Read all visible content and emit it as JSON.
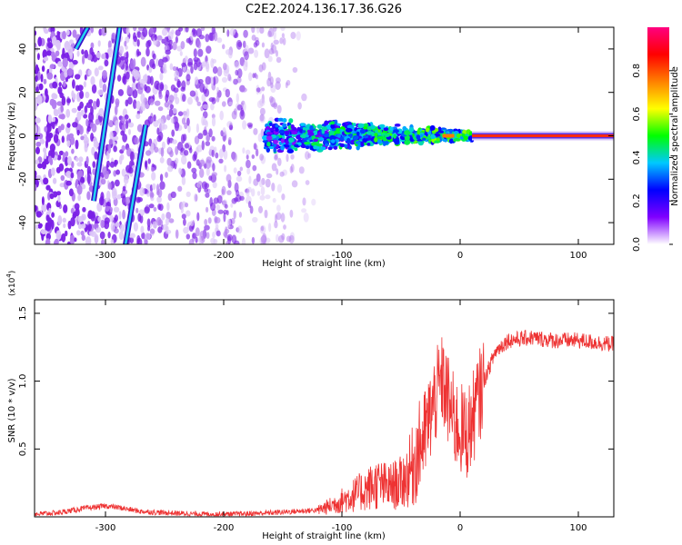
{
  "title": "C2E2.2024.136.17.36.G26",
  "chart_data": [
    {
      "type": "heatmap",
      "title": "C2E2.2024.136.17.36.G26",
      "xlabel": "Height of straight line (km)",
      "ylabel": "Frequency (Hz)",
      "xlim": [
        -360,
        130
      ],
      "ylim": [
        -50,
        50
      ],
      "xticks": [
        -300,
        -200,
        -100,
        0,
        100
      ],
      "yticks": [
        -40,
        -20,
        0,
        20,
        40
      ],
      "colorbar": {
        "label": "Normalized spectral amplitude",
        "range": [
          0,
          1
        ],
        "ticks": [
          "0.0",
          "0.2",
          "0.4",
          "0.6",
          "0.8"
        ],
        "tick_values": [
          0,
          0.2,
          0.4,
          0.6,
          0.8
        ],
        "colormap": [
          "#ffffff",
          "#8000ff",
          "#0000ff",
          "#00c8ff",
          "#00ff00",
          "#ffff00",
          "#ff8000",
          "#ff0000",
          "#ff0080"
        ]
      },
      "streaks": [
        {
          "x": [
            -325,
            -315
          ],
          "y": [
            40,
            50
          ]
        },
        {
          "x": [
            -310,
            -288
          ],
          "y": [
            -30,
            50
          ]
        },
        {
          "x": [
            -283,
            -266
          ],
          "y": [
            -50,
            5
          ]
        }
      ],
      "band": {
        "x_start": -165,
        "x_end": 130,
        "center_y": 0
      },
      "noise_extent_x": [
        -360,
        -120
      ]
    },
    {
      "type": "line",
      "xlabel": "Height of straight line (km)",
      "ylabel": "SNR (10 * v/v)",
      "y_multiplier": "(x10",
      "y_multiplier_exp": "4",
      "y_multiplier_close": ")",
      "xlim": [
        -360,
        130
      ],
      "ylim": [
        0,
        1.6
      ],
      "xticks": [
        -300,
        -200,
        -100,
        0,
        100
      ],
      "yticks": [
        "0.5",
        "1.0",
        "1.5"
      ],
      "ytick_values": [
        0.5,
        1.0,
        1.5
      ],
      "series": [
        {
          "name": "SNR",
          "color": "#ee3333",
          "x": [
            -360,
            -340,
            -320,
            -300,
            -290,
            -270,
            -250,
            -220,
            -190,
            -160,
            -140,
            -120,
            -110,
            -100,
            -90,
            -80,
            -70,
            -60,
            -50,
            -45,
            -40,
            -35,
            -30,
            -25,
            -20,
            -15,
            -10,
            -5,
            0,
            5,
            10,
            20,
            30,
            40,
            60,
            80,
            100,
            120,
            130
          ],
          "y": [
            0.02,
            0.03,
            0.06,
            0.08,
            0.07,
            0.04,
            0.03,
            0.02,
            0.02,
            0.03,
            0.04,
            0.05,
            0.08,
            0.12,
            0.16,
            0.2,
            0.24,
            0.22,
            0.25,
            0.3,
            0.38,
            0.5,
            0.6,
            0.75,
            0.9,
            1.0,
            0.85,
            0.7,
            0.65,
            0.6,
            0.7,
            1.0,
            1.22,
            1.3,
            1.32,
            1.3,
            1.3,
            1.28,
            1.27
          ]
        }
      ]
    }
  ]
}
